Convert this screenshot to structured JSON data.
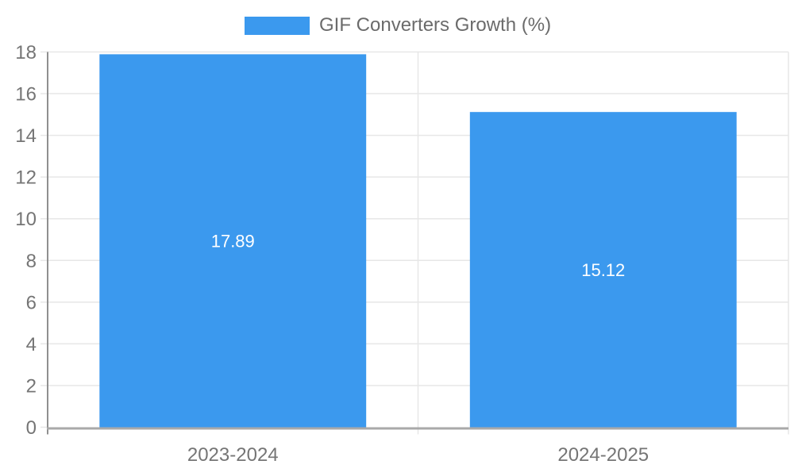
{
  "colors": {
    "bar": "#3b99ee",
    "grid": "#e7e7e7",
    "axis_y": "#8f8f8f",
    "axis_x": "#a9a9a9",
    "tick_text": "#757575",
    "value_label": "#ffffff",
    "legend_text": "#6b6b6b",
    "background": "#ffffff"
  },
  "chart_data": {
    "type": "bar",
    "title": "GIF Converters Growth (%)",
    "categories": [
      "2023-2024",
      "2024-2025"
    ],
    "values": [
      17.89,
      15.12
    ],
    "value_labels": [
      "17.89",
      "15.12"
    ],
    "xlabel": "",
    "ylabel": "",
    "ylim": [
      0,
      18
    ],
    "ytick_step": 2,
    "grid": true,
    "legend_position": "top",
    "value_label_position": "center"
  }
}
